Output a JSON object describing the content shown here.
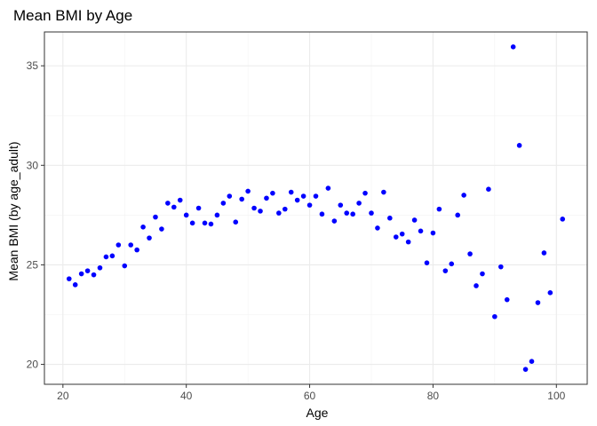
{
  "chart_data": {
    "type": "scatter",
    "title": "Mean BMI by Age",
    "xlabel": "Age",
    "ylabel": "Mean BMI (by age_adult)",
    "xlim": [
      17.0,
      105.0
    ],
    "ylim": [
      19.0,
      36.7
    ],
    "x_ticks": [
      20,
      40,
      60,
      80,
      100
    ],
    "y_ticks": [
      20,
      25,
      30,
      35
    ],
    "grid": true,
    "legend": "none",
    "point_color": "#0000ff",
    "points": [
      {
        "x": 21,
        "y": 24.3
      },
      {
        "x": 22,
        "y": 24.0
      },
      {
        "x": 23,
        "y": 24.55
      },
      {
        "x": 24,
        "y": 24.7
      },
      {
        "x": 25,
        "y": 24.5
      },
      {
        "x": 26,
        "y": 24.85
      },
      {
        "x": 27,
        "y": 25.4
      },
      {
        "x": 28,
        "y": 25.45
      },
      {
        "x": 29,
        "y": 26.0
      },
      {
        "x": 30,
        "y": 24.95
      },
      {
        "x": 31,
        "y": 26.0
      },
      {
        "x": 32,
        "y": 25.75
      },
      {
        "x": 33,
        "y": 26.9
      },
      {
        "x": 34,
        "y": 26.35
      },
      {
        "x": 35,
        "y": 27.4
      },
      {
        "x": 36,
        "y": 26.8
      },
      {
        "x": 37,
        "y": 28.1
      },
      {
        "x": 38,
        "y": 27.9
      },
      {
        "x": 39,
        "y": 28.25
      },
      {
        "x": 40,
        "y": 27.5
      },
      {
        "x": 41,
        "y": 27.1
      },
      {
        "x": 42,
        "y": 27.85
      },
      {
        "x": 43,
        "y": 27.1
      },
      {
        "x": 44,
        "y": 27.05
      },
      {
        "x": 45,
        "y": 27.5
      },
      {
        "x": 46,
        "y": 28.1
      },
      {
        "x": 47,
        "y": 28.45
      },
      {
        "x": 48,
        "y": 27.15
      },
      {
        "x": 49,
        "y": 28.3
      },
      {
        "x": 50,
        "y": 28.7
      },
      {
        "x": 51,
        "y": 27.85
      },
      {
        "x": 52,
        "y": 27.7
      },
      {
        "x": 53,
        "y": 28.35
      },
      {
        "x": 54,
        "y": 28.6
      },
      {
        "x": 55,
        "y": 27.6
      },
      {
        "x": 56,
        "y": 27.8
      },
      {
        "x": 57,
        "y": 28.65
      },
      {
        "x": 58,
        "y": 28.25
      },
      {
        "x": 59,
        "y": 28.45
      },
      {
        "x": 60,
        "y": 28.0
      },
      {
        "x": 61,
        "y": 28.45
      },
      {
        "x": 62,
        "y": 27.55
      },
      {
        "x": 63,
        "y": 28.85
      },
      {
        "x": 64,
        "y": 27.2
      },
      {
        "x": 65,
        "y": 28.0
      },
      {
        "x": 66,
        "y": 27.6
      },
      {
        "x": 67,
        "y": 27.55
      },
      {
        "x": 68,
        "y": 28.1
      },
      {
        "x": 69,
        "y": 28.6
      },
      {
        "x": 70,
        "y": 27.6
      },
      {
        "x": 71,
        "y": 26.85
      },
      {
        "x": 72,
        "y": 28.65
      },
      {
        "x": 73,
        "y": 27.35
      },
      {
        "x": 74,
        "y": 26.4
      },
      {
        "x": 75,
        "y": 26.55
      },
      {
        "x": 76,
        "y": 26.15
      },
      {
        "x": 77,
        "y": 27.25
      },
      {
        "x": 78,
        "y": 26.7
      },
      {
        "x": 79,
        "y": 25.1
      },
      {
        "x": 80,
        "y": 26.6
      },
      {
        "x": 81,
        "y": 27.8
      },
      {
        "x": 82,
        "y": 24.7
      },
      {
        "x": 83,
        "y": 25.05
      },
      {
        "x": 84,
        "y": 27.5
      },
      {
        "x": 85,
        "y": 28.5
      },
      {
        "x": 86,
        "y": 25.55
      },
      {
        "x": 87,
        "y": 23.95
      },
      {
        "x": 88,
        "y": 24.55
      },
      {
        "x": 89,
        "y": 28.8
      },
      {
        "x": 90,
        "y": 22.4
      },
      {
        "x": 91,
        "y": 24.9
      },
      {
        "x": 92,
        "y": 23.25
      },
      {
        "x": 93,
        "y": 35.95
      },
      {
        "x": 94,
        "y": 31.0
      },
      {
        "x": 95,
        "y": 19.75
      },
      {
        "x": 96,
        "y": 20.15
      },
      {
        "x": 97,
        "y": 23.1
      },
      {
        "x": 98,
        "y": 25.6
      },
      {
        "x": 99,
        "y": 23.6
      },
      {
        "x": 101,
        "y": 27.3
      }
    ]
  }
}
